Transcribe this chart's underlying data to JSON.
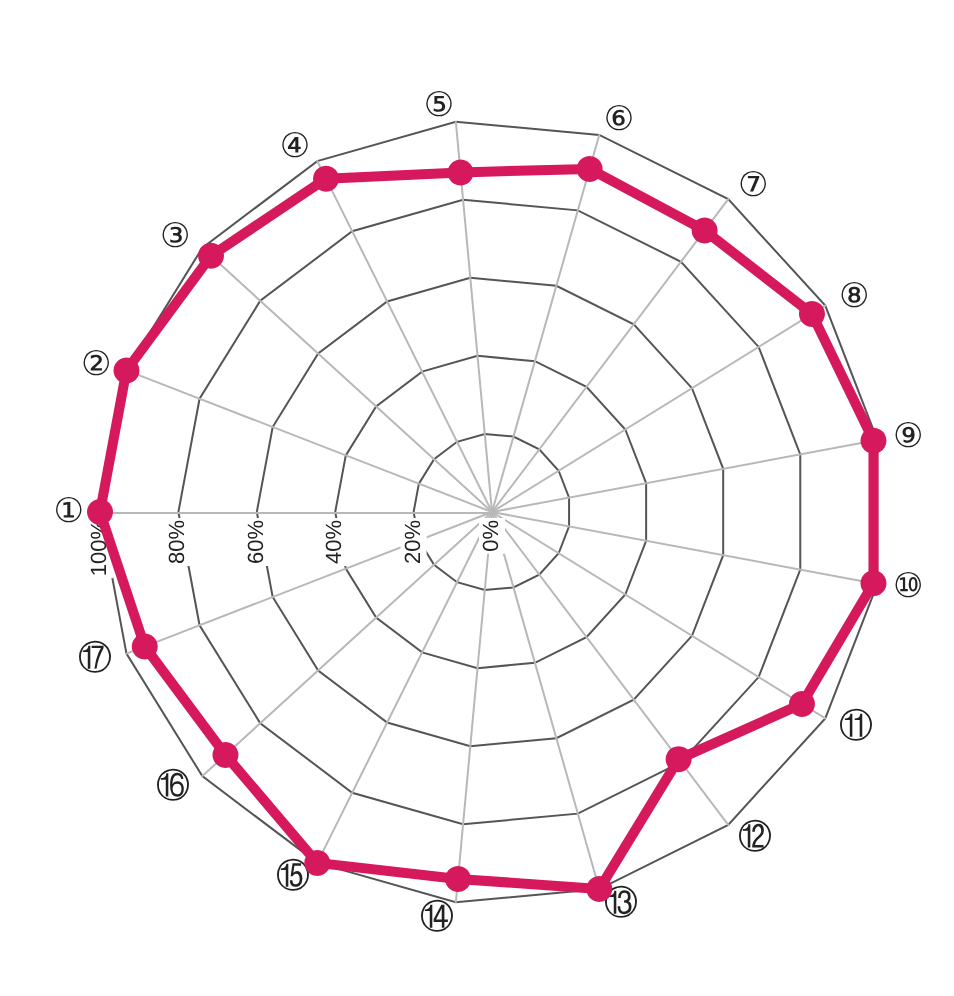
{
  "chart_data": {
    "type": "radar",
    "categories": [
      "①",
      "②",
      "③",
      "④",
      "⑤",
      "⑥",
      "⑦",
      "⑧",
      "⑨",
      "⑩",
      "⑪",
      "⑫",
      "⑬",
      "⑭",
      "⑮",
      "⑯",
      "⑰"
    ],
    "series": [
      {
        "color": "#d6185c",
        "values": [
          100,
          100,
          97,
          95,
          87,
          91,
          90,
          96,
          99,
          99,
          93,
          79,
          100,
          94,
          100,
          92,
          95
        ]
      }
    ],
    "ylim": [
      0,
      100
    ],
    "yticks": [
      {
        "value": 0,
        "label": "0%"
      },
      {
        "value": 20,
        "label": "20%"
      },
      {
        "value": 40,
        "label": "40%"
      },
      {
        "value": 60,
        "label": "60%"
      },
      {
        "value": 80,
        "label": "80%"
      },
      {
        "value": 100,
        "label": "100%"
      }
    ],
    "marker": "circle",
    "grid": true
  }
}
